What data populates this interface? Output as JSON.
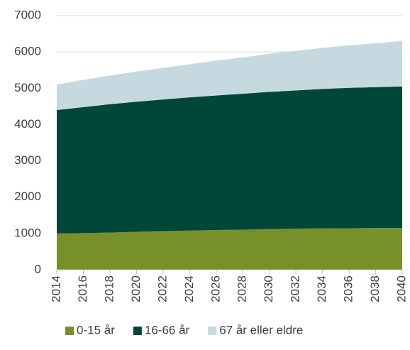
{
  "chart_data": {
    "type": "stacked_area",
    "x": [
      2014,
      2016,
      2018,
      2020,
      2022,
      2024,
      2026,
      2028,
      2030,
      2032,
      2034,
      2036,
      2038,
      2040
    ],
    "series": [
      {
        "name": "0-15 år",
        "color": "#77902a",
        "values": [
          1000,
          1010,
          1025,
          1045,
          1065,
          1080,
          1095,
          1105,
          1120,
          1135,
          1140,
          1145,
          1150,
          1150
        ]
      },
      {
        "name": "16-66 år",
        "color": "#00473a",
        "values": [
          3400,
          3470,
          3535,
          3585,
          3625,
          3670,
          3705,
          3745,
          3780,
          3805,
          3840,
          3865,
          3880,
          3900
        ]
      },
      {
        "name": "67 år eller eldre",
        "color": "#c6d9e1",
        "values": [
          700,
          750,
          790,
          830,
          870,
          910,
          960,
          1000,
          1050,
          1090,
          1130,
          1170,
          1210,
          1250
        ]
      }
    ],
    "xlim": [
      2014,
      2040
    ],
    "xticks": [
      2014,
      2016,
      2018,
      2020,
      2022,
      2024,
      2026,
      2028,
      2030,
      2032,
      2034,
      2036,
      2038,
      2040
    ],
    "ylim": [
      0,
      7000
    ],
    "yticks": [
      0,
      1000,
      2000,
      3000,
      4000,
      5000,
      6000,
      7000
    ],
    "grid": true,
    "legend": "bottom"
  }
}
